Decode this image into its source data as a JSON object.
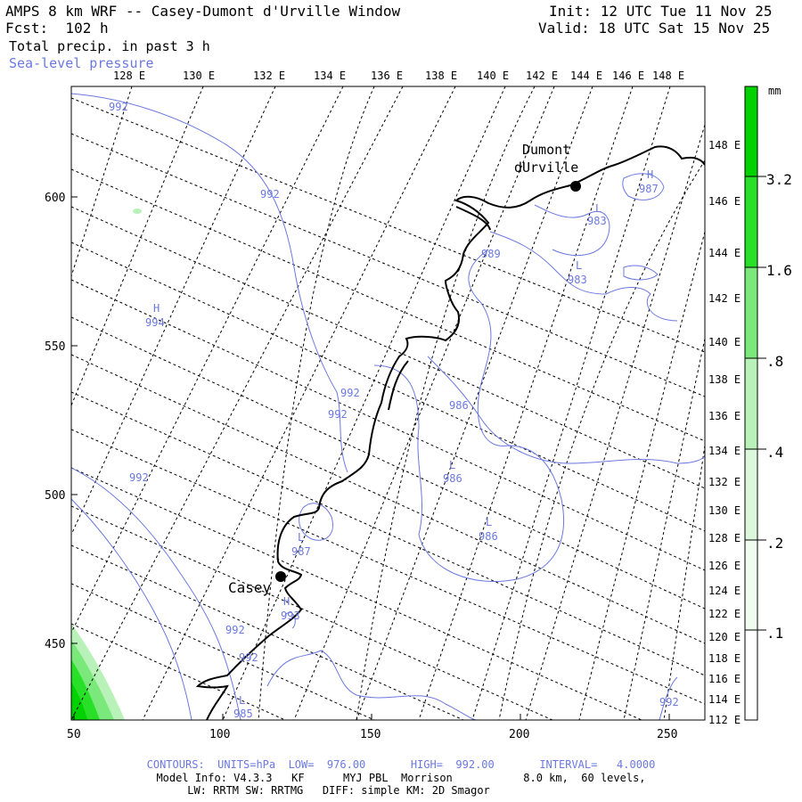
{
  "header": {
    "title": "AMPS 8 km WRF -- Casey-Dumont d'Urville Window",
    "forecast": "Fcst:  102 h",
    "field": "Total precip. in past 3 h",
    "overlay": "Sea-level pressure",
    "init": "Init: 12 UTC Tue 11 Nov 25",
    "valid": "Valid: 18 UTC Sat 15 Nov 25"
  },
  "axes": {
    "x_ticks": [
      "50",
      "100",
      "150",
      "200",
      "250"
    ],
    "y_ticks": [
      "450",
      "500",
      "550",
      "600"
    ],
    "top_lon_labels": [
      "128 E",
      "130 E",
      "132 E",
      "134 E",
      "136 E",
      "138 E",
      "140 E",
      "142 E",
      "144 E",
      "146 E",
      "148 E"
    ],
    "right_lon_labels": [
      "148 E",
      "146 E",
      "144 E",
      "142 E",
      "140 E",
      "138 E",
      "136 E",
      "134 E",
      "132 E",
      "130 E",
      "128 E",
      "126 E",
      "124 E",
      "122 E",
      "120 E",
      "118 E",
      "116 E",
      "114 E",
      "112 E"
    ]
  },
  "places": [
    {
      "name": "Casey",
      "label": "Casey"
    },
    {
      "name": "dumont",
      "label_line1": "Dumont",
      "label_line2": "dUrville"
    }
  ],
  "pressure_labels": [
    "992",
    "992",
    "H",
    "994",
    "992",
    "992",
    "992",
    "992",
    "992",
    "H",
    "987",
    "L",
    "983",
    "L",
    "983",
    "989",
    "986",
    "L",
    "986",
    "L",
    "986",
    "L",
    "987",
    "H",
    "993",
    "L",
    "985",
    "992"
  ],
  "colorbar": {
    "units": "mm",
    "labels": [
      "3.2",
      "1.6",
      ".8",
      ".4",
      ".2",
      ".1"
    ],
    "colors": [
      "#00d200",
      "#28e028",
      "#7ae87a",
      "#b8f2b8",
      "#dcf8dc",
      "#f0fcf0"
    ]
  },
  "footer": {
    "contours": "CONTOURS:  UNITS=hPa  LOW=  976.00       HIGH=  992.00       INTERVAL=   4.0000",
    "model_line1": "Model Info: V4.3.3   KF      MYJ PBL  Morrison           8.0 km,  60 levels,",
    "model_line2": "LW: RRTM SW: RRTMG   DIFF: simple KM: 2D Smagor"
  }
}
